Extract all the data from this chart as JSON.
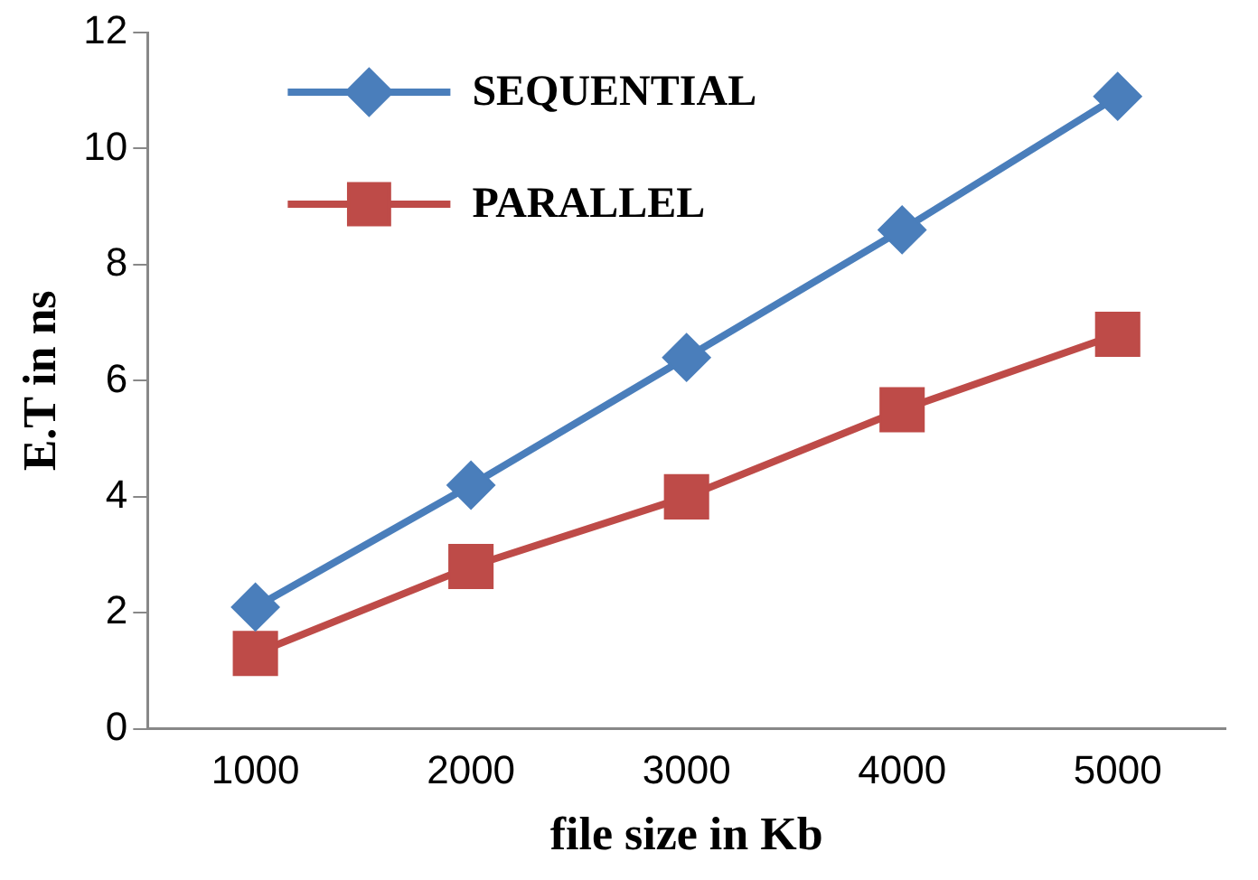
{
  "chart_data": {
    "type": "line",
    "xlabel": "file size in Kb",
    "ylabel": "E.T in ns",
    "categories": [
      "1000",
      "2000",
      "3000",
      "4000",
      "5000"
    ],
    "series": [
      {
        "name": "SEQUENTIAL",
        "color": "#4a7ebb",
        "marker": "diamond",
        "values": [
          2.1,
          4.2,
          6.4,
          8.6,
          10.9
        ]
      },
      {
        "name": "PARALLEL",
        "color": "#be4b48",
        "marker": "square",
        "values": [
          1.3,
          2.8,
          4.0,
          5.5,
          6.8
        ]
      }
    ],
    "ylim": [
      0,
      12
    ],
    "yticks": [
      0,
      2,
      4,
      6,
      8,
      10,
      12
    ],
    "grid": false,
    "legend": "top left",
    "line_style": "solid"
  }
}
